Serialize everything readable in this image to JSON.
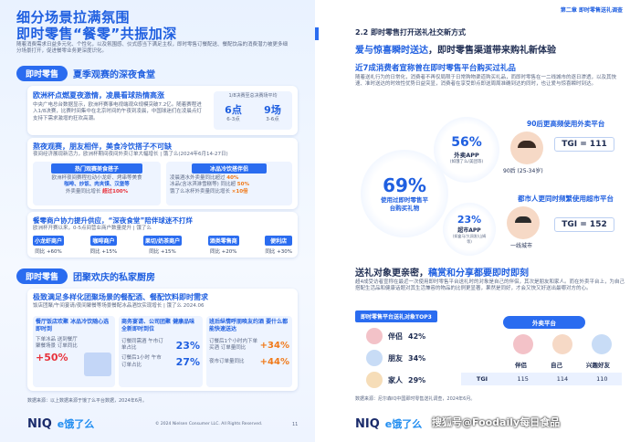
{
  "left": {
    "title_line1": "细分场景拉满氛围",
    "title_line2": "即时零售“餐零”共振加深",
    "intro": "随着消费需求日益多元化、个性化，以及氛围感、仪式感当下满足主权，即时零售订餐配送、餐配饮品的消费潜力被更多细分场景打开，促进餐零业务更深度识化。",
    "section1": {
      "pill": "即时零售",
      "title": "夏季观赛的深夜食堂",
      "item1_title": "欧洲杯点燃夏夜激情，凌晨看球热情高涨",
      "item1_text": "中央广电总台数据显示，欧洲杯赛事电视端观众规模突破7.2亿。随着赛程进入1/8决赛，比赛时间集中在北京时间的午夜到凌晨，中国球迷们在凌晨点灯支持下需求激增的狂欢高潮。",
      "stat_header": "1/8决赛至总决赛场平均",
      "stat1_value": "6点",
      "stat1_label": "6-3点",
      "stat2_value": "9场",
      "stat2_label": "3-6点",
      "item2_title": "熬夜观赛，朋友相伴，美食冷饮搭子不可缺",
      "item2_text": "夜间经济展现新活力，欧洲杯期间夜间外卖订单大幅增长 | 饿了么(2024年6月14-27日)",
      "box1_title": "热门观赛美食搭子",
      "box1_text": "欧洲杯夜间赛程拉动小龙虾、烤串等美食",
      "box1_tags": [
        "咖啡、炒饭、肉夹馍、汉堡等"
      ],
      "box1_stat_label": "外卖量同比增长",
      "box1_stat_value": "超过100%",
      "box2_title": "冰品冷饮搭伴侣",
      "box2_row1_label": "凌晨酒水外卖量同比超过",
      "box2_row1_value": "40%",
      "box2_row2_label": "冰品(含冰淇淋雪糕等) 同比超",
      "box2_row2_value": "50%",
      "box2_row3_label": "饿了么冰杯外卖量同比增长",
      "box2_row3_value": "×10倍",
      "item3_title": "餐零商户协力提升供应，“深夜食堂”陪伴球迷不打烊",
      "item3_text": "欧洲杯开赛以来，0-5点间营业商户数量提升 | 饿了么",
      "merchants": [
        {
          "name": "小龙虾商户",
          "stat": "同比 +60%"
        },
        {
          "name": "咖啡商户",
          "stat": "同比 +15%"
        },
        {
          "name": "果切/奶茶商户",
          "stat": "同比 +15%"
        },
        {
          "name": "酒类零售商",
          "stat": "同比 +20%"
        },
        {
          "name": "便利店",
          "stat": "同比 +30%"
        }
      ]
    },
    "section2": {
      "pill": "即时零售",
      "title": "团聚欢庆的私家厨房",
      "item1_title": "极致满足多样化团聚场景的餐配酒、餐配饮料即时需求",
      "item1_text": "饭店团聚/午间宴请/夜间聚餐等场景餐配冰品酒饮实现增长 | 饿了么 2024.06",
      "card1_title": "餐厅饭店欢聚 冰品冷饮随心选即时到",
      "card1_text": "下单冰品 送到餐厅聚餐场景 订单同比",
      "card1_value": "+50%",
      "card2_title": "商务宴请、公司团聚 健康品味全新即时到位",
      "card2_row1_label": "订餐同需酒 午市订单占比",
      "card2_row1_value": "23%",
      "card2_row2_label": "订餐后1小时 午市订单占比",
      "card2_row2_value": "27%",
      "card3_title": "班后纵情呼朋唤友约酒 要什么都能快速送达",
      "card3_row1_label": "订餐后1个小时内下单买酒 订单量同比",
      "card3_row1_value": "+34%",
      "card3_row2_label": "夜市订单量同比",
      "card3_row2_value": "+44%",
      "source": "数据来源：以上数据来源于饿了么平台数据，2024年6月。",
      "footer_copy": "© 2024 Nielsen Consumer LLC. All Rights Reserved.",
      "page_num": "11"
    },
    "logo_niq": "NIQ",
    "logo_ele": "e饿了么"
  },
  "right": {
    "chapter": "第二章 即时零售送礼调查",
    "section_label": "2.2 即时零售打开送礼社交新方式",
    "headline_part1": "爱与惊喜瞬时送达",
    "headline_part2": "，即时零售渠道带来购礼新体验",
    "subtitle": "近7成消费者宣称曾在即时零售平台购买过礼品",
    "paragraph": "随着送礼行为的日常化，消费者不再仅局限于日常购物渠道购买礼品，而即时零售在一二线城市的逐日渗透，以及其快速、准时送达的时效性优势日益突显，消费者在享受即点即送周周准确到达的同时，也让爱与惊喜瞬时到达。",
    "big_circle_value": "69%",
    "big_circle_label": "使用过即时零售平台购买礼物",
    "c56_value": "56%",
    "c56_label": "外卖APP",
    "c56_sub": "(如饿了么/美团等)",
    "c23_value": "23%",
    "c23_label": "超市APP",
    "c23_sub": "(如盒马/大润发/山姆等)",
    "persona1_title": "90后更高频使用外卖平台",
    "persona1_tgi": "TGI = 111",
    "persona1_label": "90后 (25-34岁)",
    "persona2_title": "都市人更同时频繁使用超市平台",
    "persona2_tgi": "TGI = 152",
    "persona2_label": "一线城市",
    "section2_headline_part1": "送礼对象更亲密，",
    "section2_headline_part2": "稿赏和分享都要即时即刻",
    "section2_text": "超4成受访者宣称在最近一次使用即时零售平台送礼时的对象是自己的伴侣，其次是朋友和家人。而在外卖平台上，为自己搭配生活品和健康话题对其生活兼容的物品的比例更显著，果然是同好，才会又快又好送出最哪对方的心。",
    "top3_title": "即时零售平台送礼对象TOP3",
    "top3": [
      {
        "label": "伴侣",
        "value": "42%"
      },
      {
        "label": "朋友",
        "value": "34%"
      },
      {
        "label": "家人",
        "value": "29%"
      }
    ],
    "waimai_title": "外卖平台",
    "waimai_cols": [
      "伴侣",
      "自己",
      "兴趣好友"
    ],
    "tgi_row_label": "TGI",
    "tgi_values": [
      "115",
      "114",
      "110"
    ],
    "source": "数据来源：尼尔森IQ中国即时零售送礼调查，2024年6月。",
    "logo_niq": "NIQ",
    "logo_ele": "e饿了么",
    "watermark": "搜狐号@Foodaily每日食品"
  }
}
